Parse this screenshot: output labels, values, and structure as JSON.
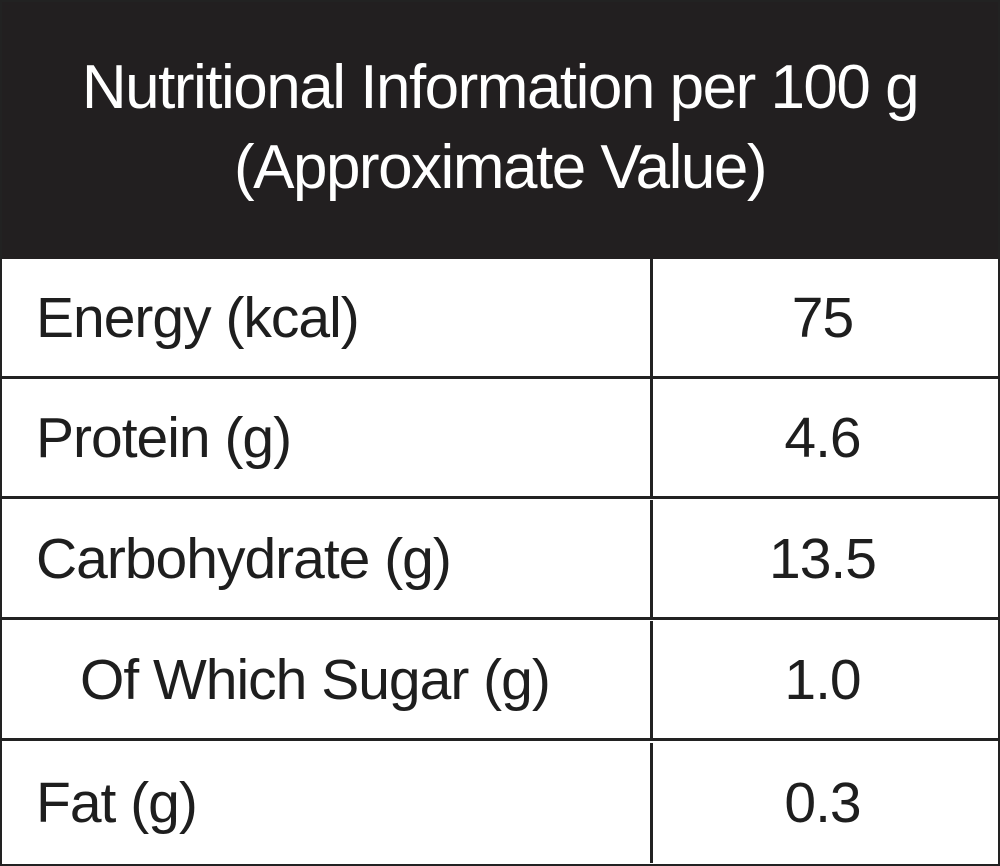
{
  "header": {
    "title_line1": "Nutritional Information per 100 g",
    "title_line2": "(Approximate Value)"
  },
  "rows": [
    {
      "label": "Energy (kcal)",
      "value": "75"
    },
    {
      "label": "Protein (g)",
      "value": "4.6"
    },
    {
      "label": "Carbohydrate (g)",
      "value": "13.5"
    },
    {
      "label": "Of Which Sugar (g)",
      "value": "1.0",
      "indented": true
    },
    {
      "label": "Fat (g)",
      "value": "0.3"
    }
  ],
  "colors": {
    "header_background": "#221f20",
    "header_text": "#ffffff",
    "body_text": "#1e1e1e",
    "rules": "#222222"
  }
}
